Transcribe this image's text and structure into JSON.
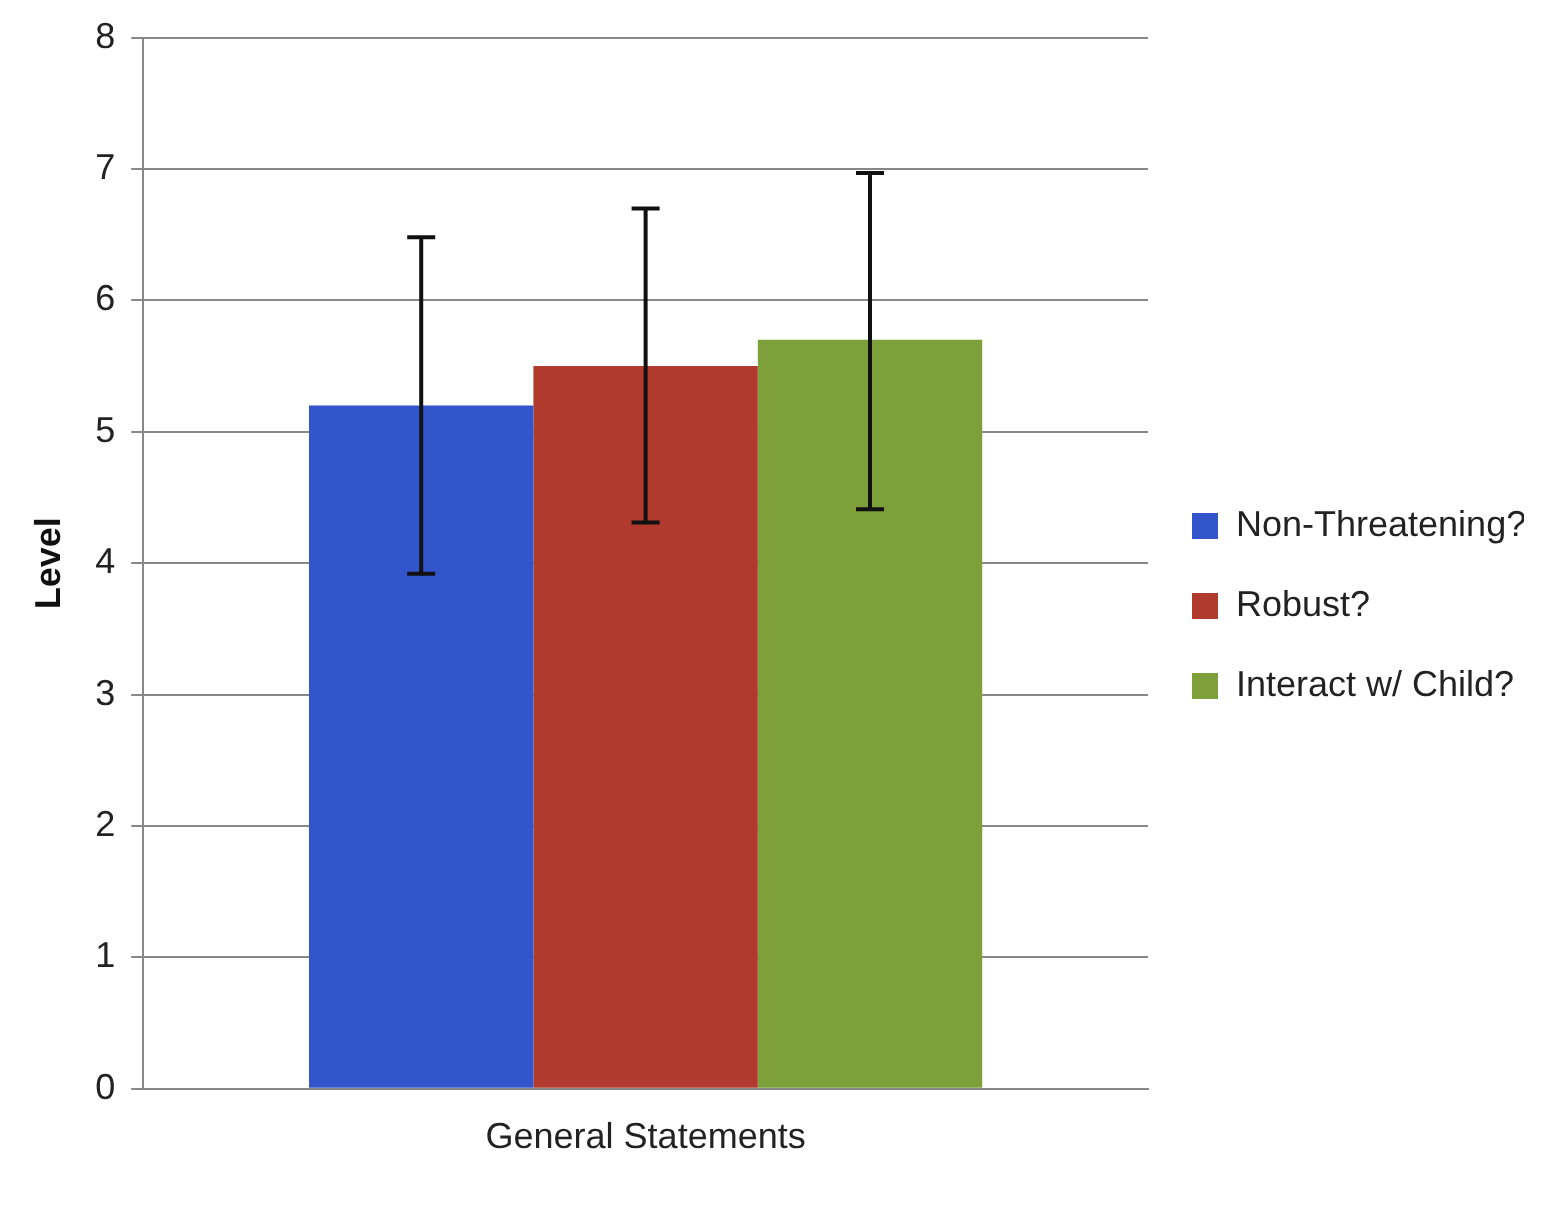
{
  "chart_data": {
    "type": "bar",
    "ylabel": "Level",
    "categories": [
      "General Statements"
    ],
    "series": [
      {
        "name": "Non-Threatening?",
        "color": "#3355cc",
        "values": [
          5.2
        ],
        "errors": [
          [
            3.92,
            6.48
          ]
        ]
      },
      {
        "name": "Robust?",
        "color": "#b03a2e",
        "values": [
          5.5
        ],
        "errors": [
          [
            4.31,
            6.7
          ]
        ]
      },
      {
        "name": "Interact w/ Child?",
        "color": "#7ea03a",
        "values": [
          5.7
        ],
        "errors": [
          [
            4.41,
            6.97
          ]
        ]
      }
    ],
    "ylim": [
      0,
      8
    ],
    "yticks": [
      0,
      1,
      2,
      3,
      4,
      5,
      6,
      7,
      8
    ],
    "grid": "y",
    "legend": "right"
  }
}
